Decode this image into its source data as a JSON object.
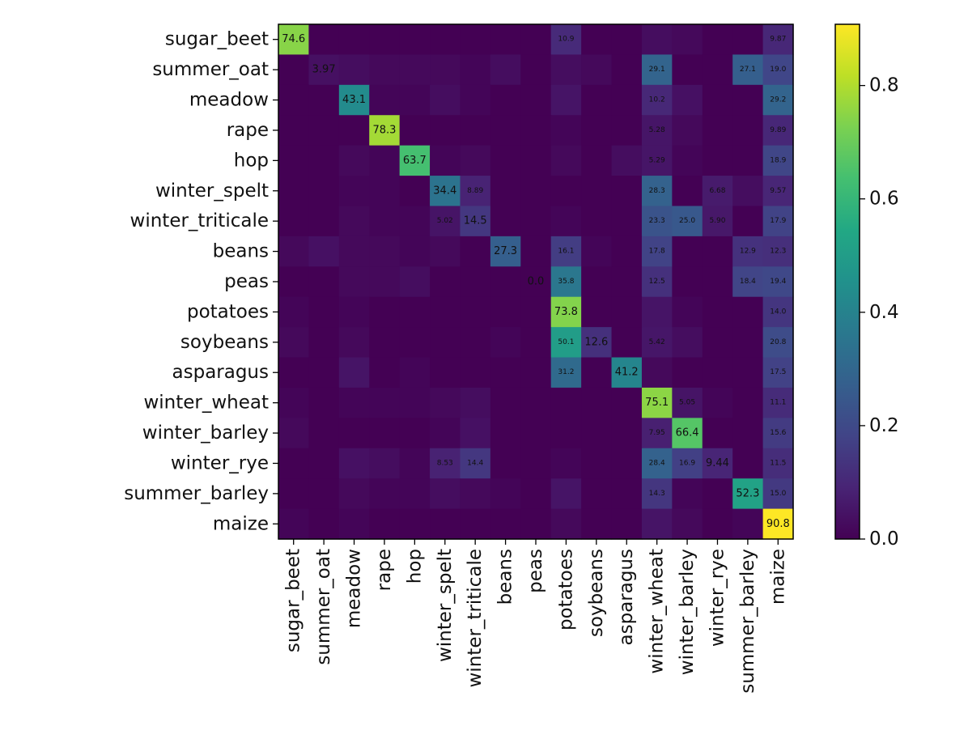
{
  "chart_data": {
    "type": "heatmap",
    "rows": [
      "sugar_beet",
      "summer_oat",
      "meadow",
      "rape",
      "hop",
      "winter_spelt",
      "winter_triticale",
      "beans",
      "peas",
      "potatoes",
      "soybeans",
      "asparagus",
      "winter_wheat",
      "winter_barley",
      "winter_rye",
      "summer_barley",
      "maize"
    ],
    "columns": [
      "sugar_beet",
      "summer_oat",
      "meadow",
      "rape",
      "hop",
      "winter_spelt",
      "winter_triticale",
      "beans",
      "peas",
      "potatoes",
      "soybeans",
      "asparagus",
      "winter_wheat",
      "winter_barley",
      "winter_rye",
      "summer_barley",
      "maize"
    ],
    "values": [
      [
        0.746,
        0,
        0,
        0,
        0,
        0,
        0,
        0,
        0,
        0.109,
        0,
        0,
        0.03,
        0.02,
        0,
        0,
        0.0987
      ],
      [
        0,
        0.0397,
        0.03,
        0.02,
        0.02,
        0.02,
        0.01,
        0.03,
        0,
        0.03,
        0.02,
        0,
        0.291,
        0,
        0,
        0.271,
        0.19
      ],
      [
        0,
        0,
        0.431,
        0.01,
        0.01,
        0.03,
        0.01,
        0,
        0,
        0.05,
        0,
        0,
        0.102,
        0.04,
        0,
        0,
        0.292
      ],
      [
        0,
        0,
        0,
        0.783,
        0,
        0,
        0,
        0,
        0,
        0.01,
        0,
        0,
        0.0528,
        0.02,
        0,
        0,
        0.0989
      ],
      [
        0,
        0,
        0.02,
        0.01,
        0.637,
        0.01,
        0.02,
        0,
        0,
        0.02,
        0,
        0.03,
        0.0529,
        0.01,
        0,
        0,
        0.189
      ],
      [
        0,
        0,
        0.01,
        0.01,
        0,
        0.344,
        0.0889,
        0,
        0,
        0,
        0,
        0,
        0.283,
        0,
        0.0668,
        0.03,
        0.0957
      ],
      [
        0,
        0,
        0.02,
        0.01,
        0.01,
        0.0502,
        0.145,
        0,
        0,
        0.01,
        0,
        0,
        0.233,
        0.25,
        0.059,
        0,
        0.179
      ],
      [
        0.02,
        0.04,
        0.02,
        0.02,
        0.01,
        0.02,
        0,
        0.273,
        0,
        0.161,
        0.01,
        0,
        0.178,
        0,
        0,
        0.129,
        0.123
      ],
      [
        0,
        0,
        0.02,
        0.02,
        0.03,
        0,
        0,
        0,
        0,
        0.358,
        0,
        0,
        0.125,
        0,
        0,
        0.184,
        0.194
      ],
      [
        0.01,
        0,
        0.01,
        0,
        0,
        0,
        0,
        0,
        0,
        0.738,
        0,
        0,
        0.05,
        0.01,
        0,
        0,
        0.14
      ],
      [
        0.02,
        0,
        0.02,
        0,
        0,
        0,
        0,
        0.01,
        0,
        0.501,
        0.126,
        0,
        0.0542,
        0.03,
        0,
        0,
        0.208
      ],
      [
        0,
        0,
        0.05,
        0,
        0.01,
        0,
        0,
        0,
        0,
        0.312,
        0,
        0.412,
        0.02,
        0,
        0,
        0,
        0.175
      ],
      [
        0.01,
        0,
        0.01,
        0.01,
        0.01,
        0.02,
        0.03,
        0,
        0,
        0,
        0,
        0,
        0.751,
        0.0505,
        0.01,
        0,
        0.111
      ],
      [
        0.02,
        0,
        0,
        0,
        0,
        0.01,
        0.04,
        0,
        0,
        0,
        0,
        0,
        0.0795,
        0.664,
        0,
        0,
        0.156
      ],
      [
        0,
        0,
        0.04,
        0.03,
        0.01,
        0.0853,
        0.144,
        0,
        0,
        0.01,
        0,
        0,
        0.284,
        0.169,
        0.0944,
        0,
        0.115
      ],
      [
        0,
        0,
        0.02,
        0.01,
        0.01,
        0.03,
        0.02,
        0.01,
        0,
        0.05,
        0,
        0,
        0.143,
        0.01,
        0,
        0.523,
        0.15
      ],
      [
        0.01,
        0,
        0.01,
        0,
        0,
        0,
        0,
        0,
        0,
        0.02,
        0,
        0,
        0.05,
        0.02,
        0,
        0.01,
        0.908
      ]
    ],
    "annotations": [
      {
        "r": 0,
        "c": 0,
        "text": "74.6",
        "big": true
      },
      {
        "r": 0,
        "c": 9,
        "text": "10.9",
        "big": false
      },
      {
        "r": 0,
        "c": 16,
        "text": "9.87",
        "big": false
      },
      {
        "r": 1,
        "c": 1,
        "text": "3.97",
        "big": true
      },
      {
        "r": 1,
        "c": 12,
        "text": "29.1",
        "big": false
      },
      {
        "r": 1,
        "c": 15,
        "text": "27.1",
        "big": false
      },
      {
        "r": 1,
        "c": 16,
        "text": "19.0",
        "big": false
      },
      {
        "r": 2,
        "c": 2,
        "text": "43.1",
        "big": true
      },
      {
        "r": 2,
        "c": 12,
        "text": "10.2",
        "big": false
      },
      {
        "r": 2,
        "c": 16,
        "text": "29.2",
        "big": false
      },
      {
        "r": 3,
        "c": 3,
        "text": "78.3",
        "big": true
      },
      {
        "r": 3,
        "c": 12,
        "text": "5.28",
        "big": false
      },
      {
        "r": 3,
        "c": 16,
        "text": "9.89",
        "big": false
      },
      {
        "r": 4,
        "c": 4,
        "text": "63.7",
        "big": true
      },
      {
        "r": 4,
        "c": 12,
        "text": "5.29",
        "big": false
      },
      {
        "r": 4,
        "c": 16,
        "text": "18.9",
        "big": false
      },
      {
        "r": 5,
        "c": 5,
        "text": "34.4",
        "big": true
      },
      {
        "r": 5,
        "c": 6,
        "text": "8.89",
        "big": false
      },
      {
        "r": 5,
        "c": 12,
        "text": "28.3",
        "big": false
      },
      {
        "r": 5,
        "c": 14,
        "text": "6.68",
        "big": false
      },
      {
        "r": 5,
        "c": 16,
        "text": "9.57",
        "big": false
      },
      {
        "r": 6,
        "c": 5,
        "text": "5.02",
        "big": false
      },
      {
        "r": 6,
        "c": 6,
        "text": "14.5",
        "big": true
      },
      {
        "r": 6,
        "c": 12,
        "text": "23.3",
        "big": false
      },
      {
        "r": 6,
        "c": 13,
        "text": "25.0",
        "big": false
      },
      {
        "r": 6,
        "c": 14,
        "text": "5.90",
        "big": false
      },
      {
        "r": 6,
        "c": 16,
        "text": "17.9",
        "big": false
      },
      {
        "r": 7,
        "c": 7,
        "text": "27.3",
        "big": true
      },
      {
        "r": 7,
        "c": 9,
        "text": "16.1",
        "big": false
      },
      {
        "r": 7,
        "c": 12,
        "text": "17.8",
        "big": false
      },
      {
        "r": 7,
        "c": 15,
        "text": "12.9",
        "big": false
      },
      {
        "r": 7,
        "c": 16,
        "text": "12.3",
        "big": false
      },
      {
        "r": 8,
        "c": 8,
        "text": "0.0",
        "big": true
      },
      {
        "r": 8,
        "c": 9,
        "text": "35.8",
        "big": false
      },
      {
        "r": 8,
        "c": 12,
        "text": "12.5",
        "big": false
      },
      {
        "r": 8,
        "c": 15,
        "text": "18.4",
        "big": false
      },
      {
        "r": 8,
        "c": 16,
        "text": "19.4",
        "big": false
      },
      {
        "r": 9,
        "c": 9,
        "text": "73.8",
        "big": true
      },
      {
        "r": 9,
        "c": 16,
        "text": "14.0",
        "big": false
      },
      {
        "r": 10,
        "c": 9,
        "text": "50.1",
        "big": false
      },
      {
        "r": 10,
        "c": 10,
        "text": "12.6",
        "big": true
      },
      {
        "r": 10,
        "c": 12,
        "text": "5.42",
        "big": false
      },
      {
        "r": 10,
        "c": 16,
        "text": "20.8",
        "big": false
      },
      {
        "r": 11,
        "c": 9,
        "text": "31.2",
        "big": false
      },
      {
        "r": 11,
        "c": 11,
        "text": "41.2",
        "big": true
      },
      {
        "r": 11,
        "c": 16,
        "text": "17.5",
        "big": false
      },
      {
        "r": 12,
        "c": 12,
        "text": "75.1",
        "big": true
      },
      {
        "r": 12,
        "c": 13,
        "text": "5.05",
        "big": false
      },
      {
        "r": 12,
        "c": 16,
        "text": "11.1",
        "big": false
      },
      {
        "r": 13,
        "c": 12,
        "text": "7.95",
        "big": false
      },
      {
        "r": 13,
        "c": 13,
        "text": "66.4",
        "big": true
      },
      {
        "r": 13,
        "c": 16,
        "text": "15.6",
        "big": false
      },
      {
        "r": 14,
        "c": 5,
        "text": "8.53",
        "big": false
      },
      {
        "r": 14,
        "c": 6,
        "text": "14.4",
        "big": false
      },
      {
        "r": 14,
        "c": 12,
        "text": "28.4",
        "big": false
      },
      {
        "r": 14,
        "c": 13,
        "text": "16.9",
        "big": false
      },
      {
        "r": 14,
        "c": 14,
        "text": "9.44",
        "big": true
      },
      {
        "r": 14,
        "c": 16,
        "text": "11.5",
        "big": false
      },
      {
        "r": 15,
        "c": 12,
        "text": "14.3",
        "big": false
      },
      {
        "r": 15,
        "c": 15,
        "text": "52.3",
        "big": true
      },
      {
        "r": 15,
        "c": 16,
        "text": "15.0",
        "big": false
      },
      {
        "r": 16,
        "c": 16,
        "text": "90.8",
        "big": true
      }
    ],
    "colorbar": {
      "min": 0,
      "max": 0.908,
      "ticks": [
        {
          "value": 0.0,
          "label": "0.0"
        },
        {
          "value": 0.2,
          "label": "0.2"
        },
        {
          "value": 0.4,
          "label": "0.4"
        },
        {
          "value": 0.6,
          "label": "0.6"
        },
        {
          "value": 0.8,
          "label": "0.8"
        }
      ],
      "colormap": "viridis"
    },
    "title": "",
    "xlabel": "",
    "ylabel": "",
    "grid": false
  }
}
